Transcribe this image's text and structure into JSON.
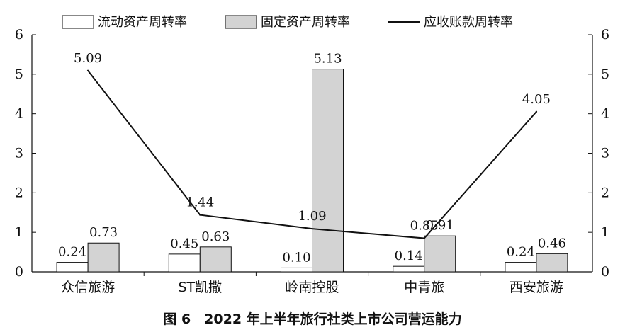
{
  "caption": "图 6　2022 年上半年旅行社类上市公司营运能力",
  "chart_data": {
    "type": "bar",
    "categories": [
      "众信旅游",
      "ST凯撒",
      "岭南控股",
      "中青旅",
      "西安旅游"
    ],
    "series": [
      {
        "name": "流动资产周转率",
        "kind": "bar",
        "axis": "left",
        "values": [
          0.24,
          0.45,
          0.1,
          0.14,
          0.24
        ],
        "color": "#ffffff"
      },
      {
        "name": "固定资产周转率",
        "kind": "bar",
        "axis": "left",
        "values": [
          0.73,
          0.63,
          5.13,
          0.91,
          0.46
        ],
        "color": "#d3d3d3"
      },
      {
        "name": "应收账款周转率",
        "kind": "line",
        "axis": "right",
        "values": [
          5.09,
          1.44,
          1.09,
          0.85,
          4.05
        ],
        "color": "#111111"
      }
    ],
    "data_labels": {
      "流动资产周转率": [
        "0.24",
        "0.45",
        "0.10",
        "0.14",
        "0.24"
      ],
      "固定资产周转率": [
        "0.73",
        "0.63",
        "5.13",
        "0.91",
        "0.46"
      ],
      "应收账款周转率": [
        "5.09",
        "1.44",
        "1.09",
        "0.85",
        "4.05"
      ]
    },
    "y_ticks": [
      "0",
      "1",
      "2",
      "3",
      "4",
      "5",
      "6"
    ],
    "y2_ticks": [
      "0",
      "1",
      "2",
      "3",
      "4",
      "5",
      "6"
    ],
    "ylim": [
      0,
      6
    ],
    "y2lim": [
      0,
      6
    ],
    "grid": false,
    "legend_position": "top"
  }
}
